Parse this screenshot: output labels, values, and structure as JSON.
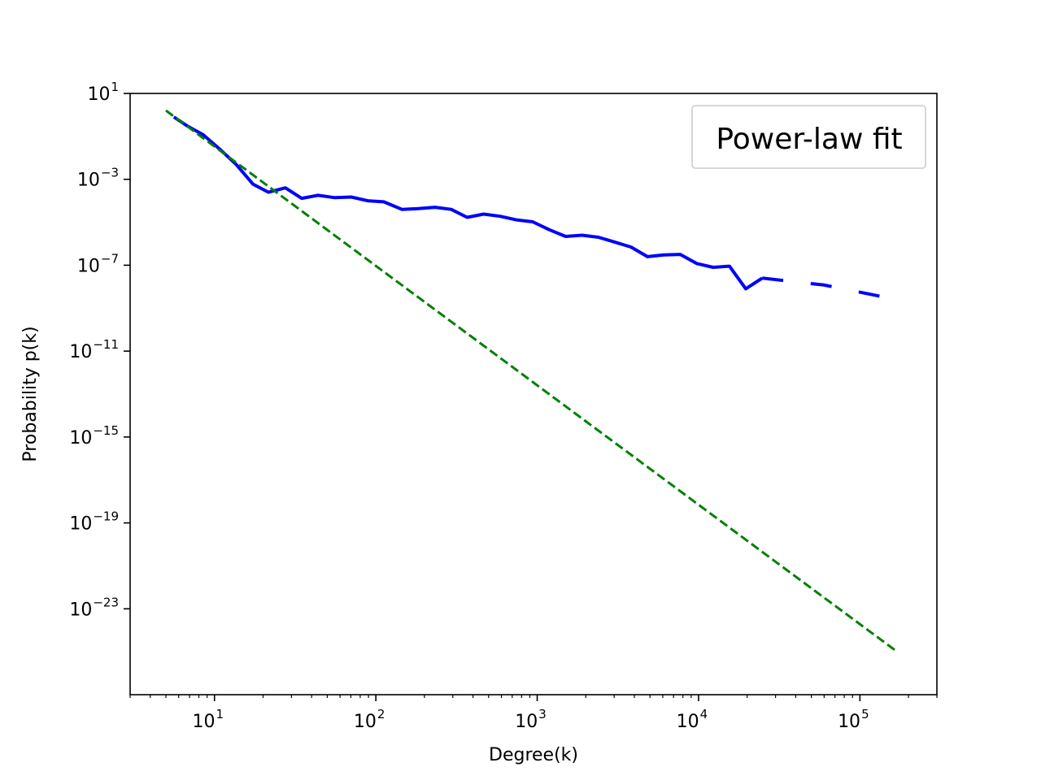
{
  "chart_data": {
    "type": "line",
    "xlabel": "Degree(k)",
    "ylabel": "Probability p(k)",
    "xscale": "log",
    "yscale": "log",
    "xlim": [
      3,
      300000
    ],
    "ylim": [
      1e-27,
      10
    ],
    "grid": false,
    "legend": {
      "entries": [
        "Power-law fit"
      ],
      "placement": "top-right"
    },
    "x_ticks": [
      {
        "base": "10",
        "exp": "1",
        "value": 10
      },
      {
        "base": "10",
        "exp": "2",
        "value": 100
      },
      {
        "base": "10",
        "exp": "3",
        "value": 1000
      },
      {
        "base": "10",
        "exp": "4",
        "value": 10000
      },
      {
        "base": "10",
        "exp": "5",
        "value": 100000
      }
    ],
    "y_ticks": [
      {
        "base": "10",
        "exp": "1",
        "value": 10
      },
      {
        "base": "10",
        "exp": "−3",
        "value": 0.001
      },
      {
        "base": "10",
        "exp": "−7",
        "value": 1e-07
      },
      {
        "base": "10",
        "exp": "−11",
        "value": 1e-11
      },
      {
        "base": "10",
        "exp": "−15",
        "value": 1e-15
      },
      {
        "base": "10",
        "exp": "−19",
        "value": 1e-19
      },
      {
        "base": "10",
        "exp": "−23",
        "value": 1e-23
      }
    ],
    "series": [
      {
        "color": "#0000ff",
        "style": "solid",
        "points": [
          [
            5.6,
            0.8
          ],
          [
            6.8,
            0.3
          ],
          [
            8.5,
            0.12
          ],
          [
            10.8,
            0.025
          ],
          [
            13.6,
            0.005
          ],
          [
            17.3,
            0.0006
          ],
          [
            21.6,
            0.00025
          ],
          [
            27.5,
            0.0004
          ],
          [
            34.7,
            0.00013
          ],
          [
            43.8,
            0.00018
          ],
          [
            55.8,
            0.00014
          ],
          [
            70.5,
            0.00015
          ],
          [
            89,
            0.0001
          ],
          [
            112,
            9e-05
          ],
          [
            145,
            4e-05
          ],
          [
            183,
            4.3e-05
          ],
          [
            232,
            5e-05
          ],
          [
            293,
            4e-05
          ],
          [
            368,
            1.7e-05
          ],
          [
            466,
            2.4e-05
          ],
          [
            589,
            1.9e-05
          ],
          [
            743,
            1.3e-05
          ],
          [
            938,
            1.05e-05
          ],
          [
            1187,
            4.5e-06
          ],
          [
            1500,
            2.2e-06
          ],
          [
            1895,
            2.5e-06
          ],
          [
            2394,
            2e-06
          ],
          [
            3022,
            1.2e-06
          ],
          [
            3818,
            7e-07
          ],
          [
            4824,
            2.5e-07
          ],
          [
            6094,
            3e-07
          ],
          [
            7700,
            3.2e-07
          ],
          [
            9728,
            1.2e-07
          ],
          [
            12290,
            8e-08
          ],
          [
            15530,
            9e-08
          ],
          [
            19620,
            8e-09
          ],
          [
            24790,
            2.5e-08
          ]
        ]
      },
      {
        "color": "#0000ff",
        "style": "dashed",
        "points": [
          [
            24790,
            2.5e-08
          ],
          [
            60000,
            1.2e-08
          ],
          [
            170000,
            2.5e-09
          ]
        ]
      },
      {
        "name": "Power-law fit",
        "color": "#008000",
        "style": "dashed",
        "points": [
          [
            5.0,
            1.6
          ],
          [
            170000,
            1e-25
          ]
        ]
      }
    ]
  }
}
